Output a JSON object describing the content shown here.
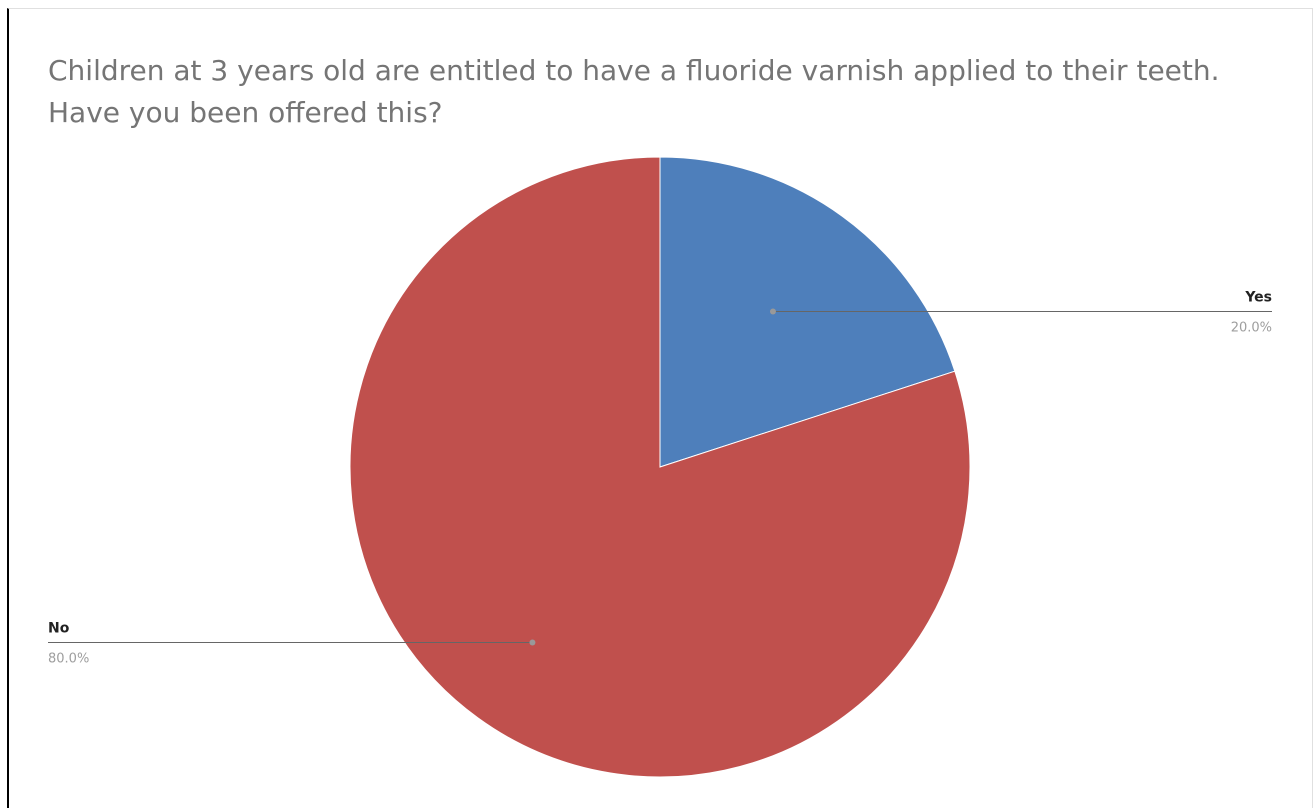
{
  "chart_data": {
    "type": "pie",
    "title": "Children at 3 years old are entitled to have a fluoride varnish applied to their teeth. Have you been offered this?",
    "slices": [
      {
        "label": "Yes",
        "value": 20.0,
        "display": "20.0%",
        "color": "#4e7fbb"
      },
      {
        "label": "No",
        "value": 80.0,
        "display": "80.0%",
        "color": "#c0504d"
      }
    ],
    "start_angle_deg": 0,
    "direction": "clockwise",
    "legend": "none"
  }
}
